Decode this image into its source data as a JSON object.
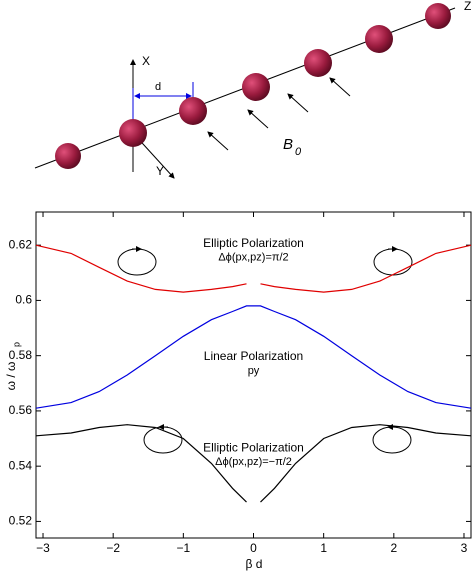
{
  "diagram": {
    "x_axis_label": "X",
    "y_axis_label": "Y",
    "z_axis_label": "Z",
    "spacing_label": "d",
    "field_label": "B",
    "field_subscript": "0"
  },
  "chart_data": {
    "type": "line",
    "x_label": "β d",
    "y_label": "ω / ω",
    "y_label_subscript": "p",
    "x": [
      -3.1,
      -2.6,
      -2.2,
      -1.8,
      -1.4,
      -1.0,
      -0.6,
      -0.3,
      -0.1,
      0,
      0.1,
      0.3,
      0.6,
      1.0,
      1.4,
      1.8,
      2.2,
      2.6,
      3.1
    ],
    "series": [
      {
        "name": "Elliptic Polarization Δϕ(px,pz)=π/2",
        "color": "#e00000",
        "values": [
          0.62,
          0.617,
          0.612,
          0.607,
          0.604,
          0.603,
          0.604,
          0.605,
          0.606,
          null,
          0.606,
          0.605,
          0.604,
          0.603,
          0.604,
          0.607,
          0.612,
          0.617,
          0.62
        ]
      },
      {
        "name": "Linear Polarization py",
        "color": "#0000e0",
        "values": [
          0.561,
          0.563,
          0.567,
          0.573,
          0.58,
          0.587,
          0.593,
          0.596,
          0.598,
          0.598,
          0.598,
          0.596,
          0.593,
          0.587,
          0.58,
          0.573,
          0.567,
          0.563,
          0.561
        ]
      },
      {
        "name": "Elliptic Polarization Δϕ(px,pz)=−π/2",
        "color": "#000000",
        "values": [
          0.551,
          0.552,
          0.554,
          0.555,
          0.554,
          0.55,
          0.541,
          0.532,
          0.527,
          null,
          0.527,
          0.532,
          0.541,
          0.55,
          0.554,
          0.555,
          0.554,
          0.552,
          0.551
        ]
      }
    ],
    "annotations": [
      {
        "text": "Elliptic Polarization",
        "x": 0,
        "y": 0.6205
      },
      {
        "text": "Δϕ(px,pz)=π/2",
        "x": 0,
        "y": 0.6155
      },
      {
        "text": "Linear Polarization",
        "x": 0,
        "y": 0.5795
      },
      {
        "text": "py",
        "x": 0,
        "y": 0.5745
      },
      {
        "text": "Elliptic Polarization",
        "x": 0,
        "y": 0.5465
      },
      {
        "text": "Δϕ(px,pz)=−π/2",
        "x": 0,
        "y": 0.5415
      }
    ],
    "xlim": [
      -3.1,
      3.1
    ],
    "ylim": [
      0.514,
      0.632
    ],
    "xticks": [
      {
        "value": -3,
        "label": "−3"
      },
      {
        "value": -2,
        "label": "−2"
      },
      {
        "value": -1,
        "label": "−1"
      },
      0,
      1,
      2,
      3
    ],
    "yticks": [
      0.52,
      0.54,
      0.56,
      0.58,
      0.6,
      0.62
    ]
  }
}
